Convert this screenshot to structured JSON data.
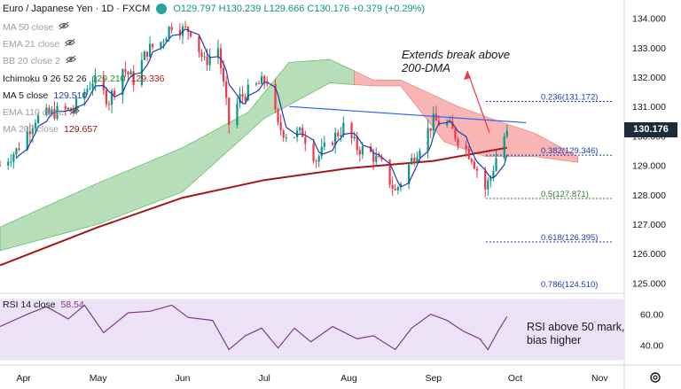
{
  "header": {
    "symbol": "Euro / Japanese Yen · 1D · FXCM",
    "ohlc": "O129.797  H130.239  L129.666  C130.176  +0.379 (+0.29%)"
  },
  "legend": [
    {
      "label": "MA 50 close",
      "value": "",
      "hidden": true
    },
    {
      "label": "EMA 21 close",
      "value": "",
      "hidden": true
    },
    {
      "label": "BB 20 close 2",
      "value": "",
      "hidden": true
    },
    {
      "label": "Ichimoku 9 26 52 26",
      "value": "129.210",
      "value2": "129.336",
      "hidden": false
    },
    {
      "label": "MA 5 close",
      "value": "129.510",
      "hidden": false
    },
    {
      "label": "EMA 110 close",
      "value": "",
      "hidden": true
    },
    {
      "label": "MA 200 close",
      "value": "129.657",
      "hidden": true
    }
  ],
  "rsi_legend": {
    "label": "RSI 14 close",
    "value": "58.54"
  },
  "annotations": {
    "break_note_1": "Extends break above",
    "break_note_2": "200-DMA",
    "rsi_note_1": "RSI above 50 mark,",
    "rsi_note_2": "bias higher"
  },
  "current_price_tag": "130.176",
  "colors": {
    "up": "#089981",
    "down": "#f23645",
    "cloud_bull": "#a5d6a7",
    "cloud_bear": "#f8a1a1",
    "ma200": "#a51515",
    "ma5": "#1f3cae",
    "trend": "#2962ff",
    "rsi": "#7e3b8a",
    "rsi_band": "#e7dcf5"
  },
  "chart_data": [
    {
      "type": "candlestick",
      "title": "Euro / Japanese Yen · 1D · FXCM",
      "ylim": [
        124.8,
        134.5
      ],
      "y_ticks": [
        125.0,
        126.0,
        127.0,
        128.0,
        129.0,
        130.0,
        131.0,
        132.0,
        133.0,
        134.0
      ],
      "x_ticks": [
        "Apr",
        "May",
        "Jun",
        "Jul",
        "Aug",
        "Sep",
        "Oct",
        "Nov"
      ],
      "close_path": [
        [
          "Mar 26",
          129.0
        ],
        [
          "Apr 1",
          129.5
        ],
        [
          "Apr 8",
          130.6
        ],
        [
          "Apr 15",
          130.8
        ],
        [
          "Apr 22",
          130.9
        ],
        [
          "Apr 29",
          131.9
        ],
        [
          "May 5",
          131.2
        ],
        [
          "May 10",
          132.3
        ],
        [
          "May 14",
          131.9
        ],
        [
          "May 19",
          132.9
        ],
        [
          "May 24",
          133.2
        ],
        [
          "May 28",
          133.8
        ],
        [
          "Jun 1",
          133.6
        ],
        [
          "Jun 4",
          133.6
        ],
        [
          "Jun 9",
          132.5
        ],
        [
          "Jun 14",
          133.0
        ],
        [
          "Jun 18",
          130.4
        ],
        [
          "Jun 22",
          131.3
        ],
        [
          "Jun 28",
          131.7
        ],
        [
          "Jul 2",
          131.9
        ],
        [
          "Jul 6",
          130.3
        ],
        [
          "Jul 10",
          130.0
        ],
        [
          "Jul 15",
          130.1
        ],
        [
          "Jul 20",
          129.2
        ],
        [
          "Jul 26",
          129.9
        ],
        [
          "Jul 30",
          130.3
        ],
        [
          "Aug 4",
          129.6
        ],
        [
          "Aug 9",
          129.4
        ],
        [
          "Aug 13",
          129.0
        ],
        [
          "Aug 18",
          128.1
        ],
        [
          "Aug 23",
          129.0
        ],
        [
          "Aug 27",
          129.7
        ],
        [
          "Sep 1",
          130.5
        ],
        [
          "Sep 6",
          130.4
        ],
        [
          "Sep 10",
          129.9
        ],
        [
          "Sep 15",
          129.3
        ],
        [
          "Sep 20",
          128.2
        ],
        [
          "Sep 22",
          128.6
        ],
        [
          "Sep 25",
          129.6
        ],
        [
          "Sep 28",
          130.176
        ]
      ],
      "ma200": [
        [
          "Mar 26",
          125.6
        ],
        [
          "May 1",
          126.9
        ],
        [
          "Jun 1",
          127.9
        ],
        [
          "Jul 1",
          128.5
        ],
        [
          "Aug 1",
          128.9
        ],
        [
          "Sep 1",
          129.15
        ],
        [
          "Sep 28",
          129.6
        ]
      ],
      "ichimoku_cloud_top": [
        [
          "Mar 26",
          126.9
        ],
        [
          "May 1",
          128.4
        ],
        [
          "Jun 1",
          129.6
        ],
        [
          "Jun 25",
          130.8
        ],
        [
          "Jul 10",
          132.5
        ],
        [
          "Jul 25",
          132.6
        ],
        [
          "Aug 10",
          131.9
        ],
        [
          "Aug 20",
          131.9
        ],
        [
          "Sep 10",
          131.0
        ],
        [
          "Sep 28",
          130.4
        ],
        [
          "Oct 8",
          130.1
        ],
        [
          "Oct 24",
          129.3
        ]
      ],
      "ichimoku_cloud_bottom": [
        [
          "Mar 26",
          126.1
        ],
        [
          "May 1",
          127.0
        ],
        [
          "Jun 1",
          128.1
        ],
        [
          "Jul 1",
          130.6
        ],
        [
          "Jul 25",
          131.8
        ],
        [
          "Aug 10",
          131.7
        ],
        [
          "Aug 20",
          131.7
        ],
        [
          "Sep 5",
          129.8
        ],
        [
          "Sep 20",
          129.3
        ],
        [
          "Oct 8",
          129.3
        ],
        [
          "Oct 24",
          129.1
        ]
      ],
      "trendline": [
        [
          "Jul 10",
          131.0
        ],
        [
          "Oct 5",
          130.45
        ]
      ],
      "fibonacci": [
        {
          "label": "0.236(131.172)",
          "value": 131.172
        },
        {
          "label": "0.382(129.346)",
          "value": 129.346
        },
        {
          "label": "0.5(127.871)",
          "value": 127.871
        },
        {
          "label": "0.618(126.395)",
          "value": 126.395
        },
        {
          "label": "0.786(124.510)",
          "value": 124.51
        }
      ]
    },
    {
      "type": "line",
      "title": "RSI 14 close",
      "ylim": [
        30,
        70
      ],
      "y_ticks": [
        40.0,
        60.0
      ],
      "band": [
        30,
        70
      ],
      "series": [
        {
          "name": "RSI 14 close",
          "values": [
            [
              "Mar 26",
              52
            ],
            [
              "Apr 5",
              60
            ],
            [
              "Apr 12",
              65
            ],
            [
              "Apr 20",
              57
            ],
            [
              "Apr 26",
              66
            ],
            [
              "May 3",
              48
            ],
            [
              "May 12",
              61
            ],
            [
              "May 20",
              62
            ],
            [
              "May 28",
              66
            ],
            [
              "Jun 3",
              58
            ],
            [
              "Jun 12",
              56
            ],
            [
              "Jun 18",
              37
            ],
            [
              "Jun 24",
              46
            ],
            [
              "Jun 30",
              51
            ],
            [
              "Jul 6",
              38
            ],
            [
              "Jul 12",
              51
            ],
            [
              "Jul 18",
              42
            ],
            [
              "Jul 26",
              52
            ],
            [
              "Aug 4",
              44
            ],
            [
              "Aug 10",
              46
            ],
            [
              "Aug 18",
              37
            ],
            [
              "Aug 24",
              51
            ],
            [
              "Aug 31",
              60
            ],
            [
              "Sep 6",
              56
            ],
            [
              "Sep 12",
              49
            ],
            [
              "Sep 18",
              44
            ],
            [
              "Sep 21",
              37
            ],
            [
              "Sep 25",
              50
            ],
            [
              "Sep 28",
              58.54
            ]
          ]
        }
      ]
    }
  ]
}
